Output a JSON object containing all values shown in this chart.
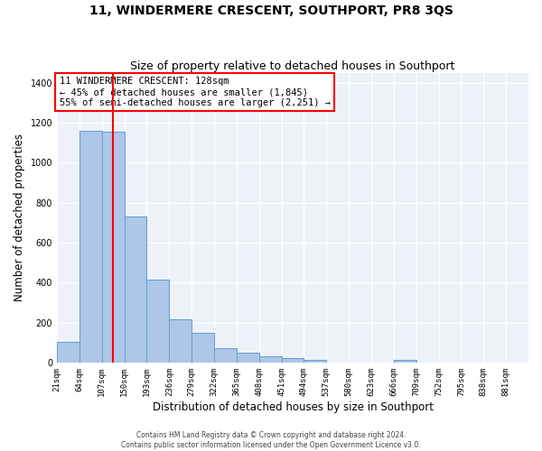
{
  "title": "11, WINDERMERE CRESCENT, SOUTHPORT, PR8 3QS",
  "subtitle": "Size of property relative to detached houses in Southport",
  "xlabel": "Distribution of detached houses by size in Southport",
  "ylabel": "Number of detached properties",
  "bin_labels": [
    "21sqm",
    "64sqm",
    "107sqm",
    "150sqm",
    "193sqm",
    "236sqm",
    "279sqm",
    "322sqm",
    "365sqm",
    "408sqm",
    "451sqm",
    "494sqm",
    "537sqm",
    "580sqm",
    "623sqm",
    "666sqm",
    "709sqm",
    "752sqm",
    "795sqm",
    "838sqm",
    "881sqm"
  ],
  "bar_heights": [
    105,
    1160,
    1155,
    730,
    415,
    215,
    150,
    70,
    50,
    30,
    20,
    15,
    0,
    0,
    0,
    15,
    0,
    0,
    0,
    0,
    0
  ],
  "bar_color": "#aec6e8",
  "bar_edge_color": "#5a9fd4",
  "vline_x": 128,
  "vline_color": "red",
  "annotation_text": "11 WINDERMERE CRESCENT: 128sqm\n← 45% of detached houses are smaller (1,845)\n55% of semi-detached houses are larger (2,251) →",
  "annotation_box_color": "white",
  "annotation_box_edge_color": "red",
  "ylim": [
    0,
    1450
  ],
  "yticks": [
    0,
    200,
    400,
    600,
    800,
    1000,
    1200,
    1400
  ],
  "background_color": "#eef2f8",
  "grid_color": "white",
  "footer_line1": "Contains HM Land Registry data © Crown copyright and database right 2024.",
  "footer_line2": "Contains public sector information licensed under the Open Government Licence v3.0.",
  "title_fontsize": 10,
  "subtitle_fontsize": 9,
  "xlabel_fontsize": 8.5,
  "ylabel_fontsize": 8.5,
  "annot_fontsize": 7.5,
  "tick_fontsize": 6.5,
  "footer_fontsize": 5.5
}
